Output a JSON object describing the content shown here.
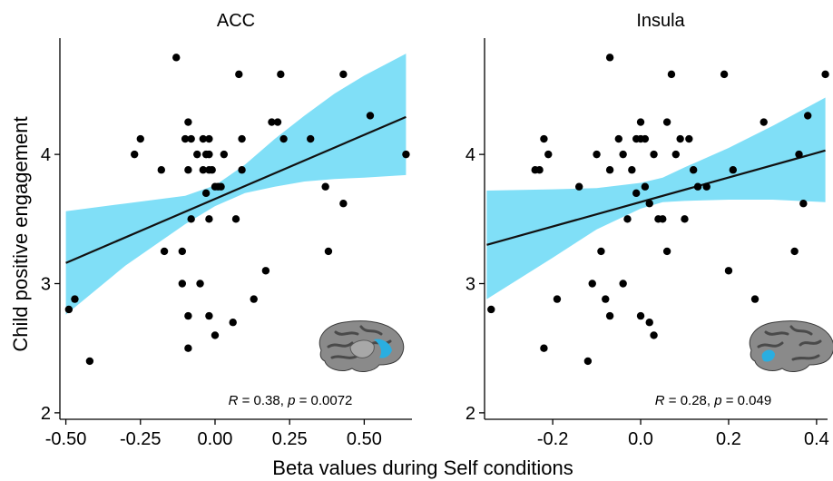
{
  "figure": {
    "xlabel": "Beta values during Self conditions",
    "ylabel": "Child positive engagement"
  },
  "colors": {
    "ribbon": "#80dff7",
    "point": "#000000",
    "point_in_ribbon": "#1f5f76",
    "fit_line": "#111111",
    "brain_gray": "#8a8a8a",
    "brain_dark": "#4a4a4a",
    "brain_highlight": "#2aaee0"
  },
  "chart_data": [
    {
      "type": "scatter",
      "title": "ACC",
      "stats": {
        "r_label": "R",
        "r_value": " = 0.38, ",
        "p_label": "p",
        "p_value": " = 0.0072"
      },
      "xlim": [
        -0.52,
        0.66
      ],
      "ylim": [
        1.95,
        4.9
      ],
      "xticks": [
        -0.5,
        -0.25,
        0.0,
        0.25,
        0.5
      ],
      "xtick_labels": [
        "-0.50",
        "-0.25",
        "0.00",
        "0.25",
        "0.50"
      ],
      "yticks": [
        2,
        3,
        4
      ],
      "ytick_labels": [
        "2",
        "3",
        "4"
      ],
      "fit": {
        "x0": -0.5,
        "y0": 3.16,
        "x1": 0.64,
        "y1": 4.29
      },
      "ribbon_upper": [
        [
          -0.5,
          3.56
        ],
        [
          -0.3,
          3.62
        ],
        [
          -0.1,
          3.68
        ],
        [
          0.0,
          3.76
        ],
        [
          0.1,
          3.92
        ],
        [
          0.2,
          4.12
        ],
        [
          0.3,
          4.3
        ],
        [
          0.4,
          4.47
        ],
        [
          0.5,
          4.61
        ],
        [
          0.64,
          4.78
        ]
      ],
      "ribbon_lower": [
        [
          -0.5,
          2.76
        ],
        [
          -0.3,
          3.14
        ],
        [
          -0.1,
          3.46
        ],
        [
          0.0,
          3.6
        ],
        [
          0.1,
          3.7
        ],
        [
          0.2,
          3.75
        ],
        [
          0.3,
          3.79
        ],
        [
          0.4,
          3.81
        ],
        [
          0.5,
          3.82
        ],
        [
          0.64,
          3.84
        ]
      ],
      "points": [
        {
          "x": -0.49,
          "y": 2.8
        },
        {
          "x": -0.47,
          "y": 2.88
        },
        {
          "x": -0.42,
          "y": 2.4
        },
        {
          "x": -0.27,
          "y": 4.0
        },
        {
          "x": -0.25,
          "y": 4.12
        },
        {
          "x": -0.18,
          "y": 3.88
        },
        {
          "x": -0.17,
          "y": 3.25
        },
        {
          "x": -0.13,
          "y": 4.75
        },
        {
          "x": -0.11,
          "y": 3.25
        },
        {
          "x": -0.11,
          "y": 3.0
        },
        {
          "x": -0.1,
          "y": 4.12
        },
        {
          "x": -0.09,
          "y": 4.25
        },
        {
          "x": -0.09,
          "y": 3.88
        },
        {
          "x": -0.09,
          "y": 2.75
        },
        {
          "x": -0.09,
          "y": 2.5
        },
        {
          "x": -0.08,
          "y": 4.12
        },
        {
          "x": -0.08,
          "y": 3.5
        },
        {
          "x": -0.06,
          "y": 4.0
        },
        {
          "x": -0.05,
          "y": 3.0
        },
        {
          "x": -0.04,
          "y": 4.12
        },
        {
          "x": -0.04,
          "y": 3.88
        },
        {
          "x": -0.03,
          "y": 4.0
        },
        {
          "x": -0.03,
          "y": 3.7
        },
        {
          "x": -0.02,
          "y": 4.12
        },
        {
          "x": -0.02,
          "y": 4.0
        },
        {
          "x": -0.02,
          "y": 3.88
        },
        {
          "x": -0.02,
          "y": 3.5
        },
        {
          "x": -0.02,
          "y": 2.75
        },
        {
          "x": -0.01,
          "y": 3.88
        },
        {
          "x": 0.0,
          "y": 3.75
        },
        {
          "x": 0.0,
          "y": 2.6
        },
        {
          "x": 0.01,
          "y": 3.75
        },
        {
          "x": 0.02,
          "y": 3.75
        },
        {
          "x": 0.03,
          "y": 4.0
        },
        {
          "x": 0.06,
          "y": 2.7
        },
        {
          "x": 0.07,
          "y": 3.5
        },
        {
          "x": 0.08,
          "y": 4.62
        },
        {
          "x": 0.09,
          "y": 4.12
        },
        {
          "x": 0.09,
          "y": 3.88
        },
        {
          "x": 0.13,
          "y": 2.88
        },
        {
          "x": 0.17,
          "y": 3.1
        },
        {
          "x": 0.19,
          "y": 4.25
        },
        {
          "x": 0.21,
          "y": 4.25
        },
        {
          "x": 0.22,
          "y": 4.62
        },
        {
          "x": 0.23,
          "y": 4.12
        },
        {
          "x": 0.32,
          "y": 4.12
        },
        {
          "x": 0.37,
          "y": 3.75
        },
        {
          "x": 0.38,
          "y": 3.25
        },
        {
          "x": 0.43,
          "y": 4.62
        },
        {
          "x": 0.43,
          "y": 3.62
        },
        {
          "x": 0.52,
          "y": 4.3
        },
        {
          "x": 0.64,
          "y": 4.0
        }
      ]
    },
    {
      "type": "scatter",
      "title": "Insula",
      "stats": {
        "r_label": "R",
        "r_value": " = 0.28, ",
        "p_label": "p",
        "p_value": " = 0.049"
      },
      "xlim": [
        -0.355,
        0.425
      ],
      "ylim": [
        1.95,
        4.9
      ],
      "xticks": [
        -0.2,
        0.0,
        0.2,
        0.4
      ],
      "xtick_labels": [
        "-0.2",
        "0.0",
        "0.2",
        "0.4"
      ],
      "yticks": [
        3,
        4
      ],
      "ytick_labels": [
        "3",
        "4"
      ],
      "ytick_marks": [
        2,
        3,
        4
      ],
      "fit": {
        "x0": -0.35,
        "y0": 3.3,
        "x1": 0.42,
        "y1": 4.03
      },
      "ribbon_upper": [
        [
          -0.35,
          3.72
        ],
        [
          -0.2,
          3.73
        ],
        [
          -0.1,
          3.74
        ],
        [
          0.0,
          3.78
        ],
        [
          0.05,
          3.82
        ],
        [
          0.1,
          3.9
        ],
        [
          0.2,
          4.05
        ],
        [
          0.3,
          4.22
        ],
        [
          0.42,
          4.44
        ]
      ],
      "ribbon_lower": [
        [
          -0.35,
          2.88
        ],
        [
          -0.2,
          3.2
        ],
        [
          -0.1,
          3.42
        ],
        [
          0.0,
          3.58
        ],
        [
          0.05,
          3.63
        ],
        [
          0.1,
          3.64
        ],
        [
          0.2,
          3.65
        ],
        [
          0.3,
          3.65
        ],
        [
          0.42,
          3.63
        ]
      ],
      "points": [
        {
          "x": -0.34,
          "y": 2.8
        },
        {
          "x": -0.24,
          "y": 3.88
        },
        {
          "x": -0.23,
          "y": 3.88
        },
        {
          "x": -0.22,
          "y": 4.12
        },
        {
          "x": -0.22,
          "y": 2.5
        },
        {
          "x": -0.21,
          "y": 4.0
        },
        {
          "x": -0.19,
          "y": 2.88
        },
        {
          "x": -0.14,
          "y": 3.75
        },
        {
          "x": -0.12,
          "y": 2.4
        },
        {
          "x": -0.11,
          "y": 3.0
        },
        {
          "x": -0.1,
          "y": 4.0
        },
        {
          "x": -0.09,
          "y": 3.25
        },
        {
          "x": -0.08,
          "y": 2.88
        },
        {
          "x": -0.07,
          "y": 4.75
        },
        {
          "x": -0.07,
          "y": 3.88
        },
        {
          "x": -0.07,
          "y": 2.75
        },
        {
          "x": -0.05,
          "y": 4.12
        },
        {
          "x": -0.04,
          "y": 4.0
        },
        {
          "x": -0.04,
          "y": 3.0
        },
        {
          "x": -0.03,
          "y": 3.5
        },
        {
          "x": -0.02,
          "y": 3.88
        },
        {
          "x": -0.01,
          "y": 4.12
        },
        {
          "x": -0.01,
          "y": 3.7
        },
        {
          "x": 0.0,
          "y": 4.25
        },
        {
          "x": 0.0,
          "y": 4.12
        },
        {
          "x": 0.0,
          "y": 2.75
        },
        {
          "x": 0.01,
          "y": 4.12
        },
        {
          "x": 0.01,
          "y": 3.75
        },
        {
          "x": 0.02,
          "y": 3.62
        },
        {
          "x": 0.02,
          "y": 2.7
        },
        {
          "x": 0.03,
          "y": 4.0
        },
        {
          "x": 0.03,
          "y": 2.6
        },
        {
          "x": 0.04,
          "y": 3.5
        },
        {
          "x": 0.05,
          "y": 3.5
        },
        {
          "x": 0.06,
          "y": 4.25
        },
        {
          "x": 0.06,
          "y": 3.25
        },
        {
          "x": 0.07,
          "y": 4.62
        },
        {
          "x": 0.08,
          "y": 4.0
        },
        {
          "x": 0.09,
          "y": 4.12
        },
        {
          "x": 0.1,
          "y": 3.5
        },
        {
          "x": 0.11,
          "y": 4.12
        },
        {
          "x": 0.12,
          "y": 3.88
        },
        {
          "x": 0.13,
          "y": 3.75
        },
        {
          "x": 0.15,
          "y": 3.75
        },
        {
          "x": 0.19,
          "y": 4.62
        },
        {
          "x": 0.2,
          "y": 3.1
        },
        {
          "x": 0.21,
          "y": 3.88
        },
        {
          "x": 0.26,
          "y": 2.88
        },
        {
          "x": 0.28,
          "y": 4.25
        },
        {
          "x": 0.35,
          "y": 3.25
        },
        {
          "x": 0.36,
          "y": 4.0
        },
        {
          "x": 0.37,
          "y": 3.62
        },
        {
          "x": 0.38,
          "y": 4.3
        },
        {
          "x": 0.42,
          "y": 4.62
        }
      ]
    }
  ]
}
